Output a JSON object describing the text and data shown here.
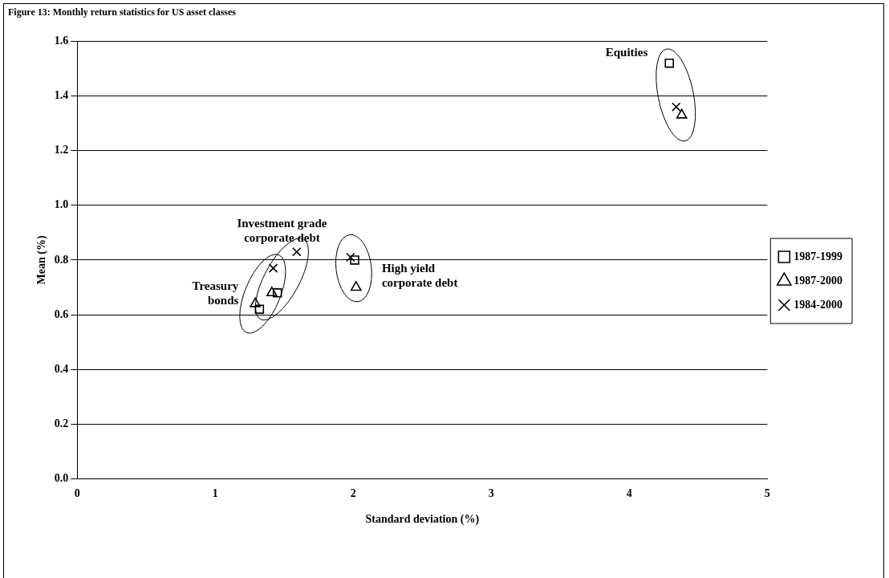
{
  "chart_data": {
    "type": "scatter",
    "title": "Figure 13: Monthly return statistics for US asset classes",
    "xlabel": "Standard deviation (%)",
    "ylabel": "Mean (%)",
    "xlim": [
      0,
      5
    ],
    "xticks": [
      0,
      1,
      2,
      3,
      4,
      5
    ],
    "ylim": [
      0,
      1.6
    ],
    "yticks": [
      {
        "value": 0,
        "label": "0.0"
      },
      0.2,
      0.4,
      0.6,
      0.8,
      {
        "value": 1,
        "label": "1.0"
      },
      1.2,
      1.4,
      1.6
    ],
    "grid": "y",
    "legend": "right",
    "series": [
      {
        "name": "1987-1999",
        "color": "#000000",
        "marker": "square",
        "x": [
          1.32,
          1.45,
          2.01,
          4.29
        ],
        "values": [
          0.62,
          0.68,
          0.8,
          1.52
        ]
      },
      {
        "name": "1987-2000",
        "color": "#000000",
        "marker": "triangle",
        "x": [
          1.29,
          1.41,
          2.02,
          4.38
        ],
        "values": [
          0.64,
          0.68,
          0.7,
          1.33
        ]
      },
      {
        "name": "1984-2000",
        "color": "#000000",
        "marker": "cross",
        "x": [
          1.42,
          1.59,
          1.98,
          4.34
        ],
        "values": [
          0.77,
          0.83,
          0.81,
          1.36
        ]
      }
    ],
    "annotations": [
      "Treasury\nbonds",
      "Investment grade\ncorporate debt",
      "High yield\ncorporate debt",
      "Equities"
    ]
  }
}
